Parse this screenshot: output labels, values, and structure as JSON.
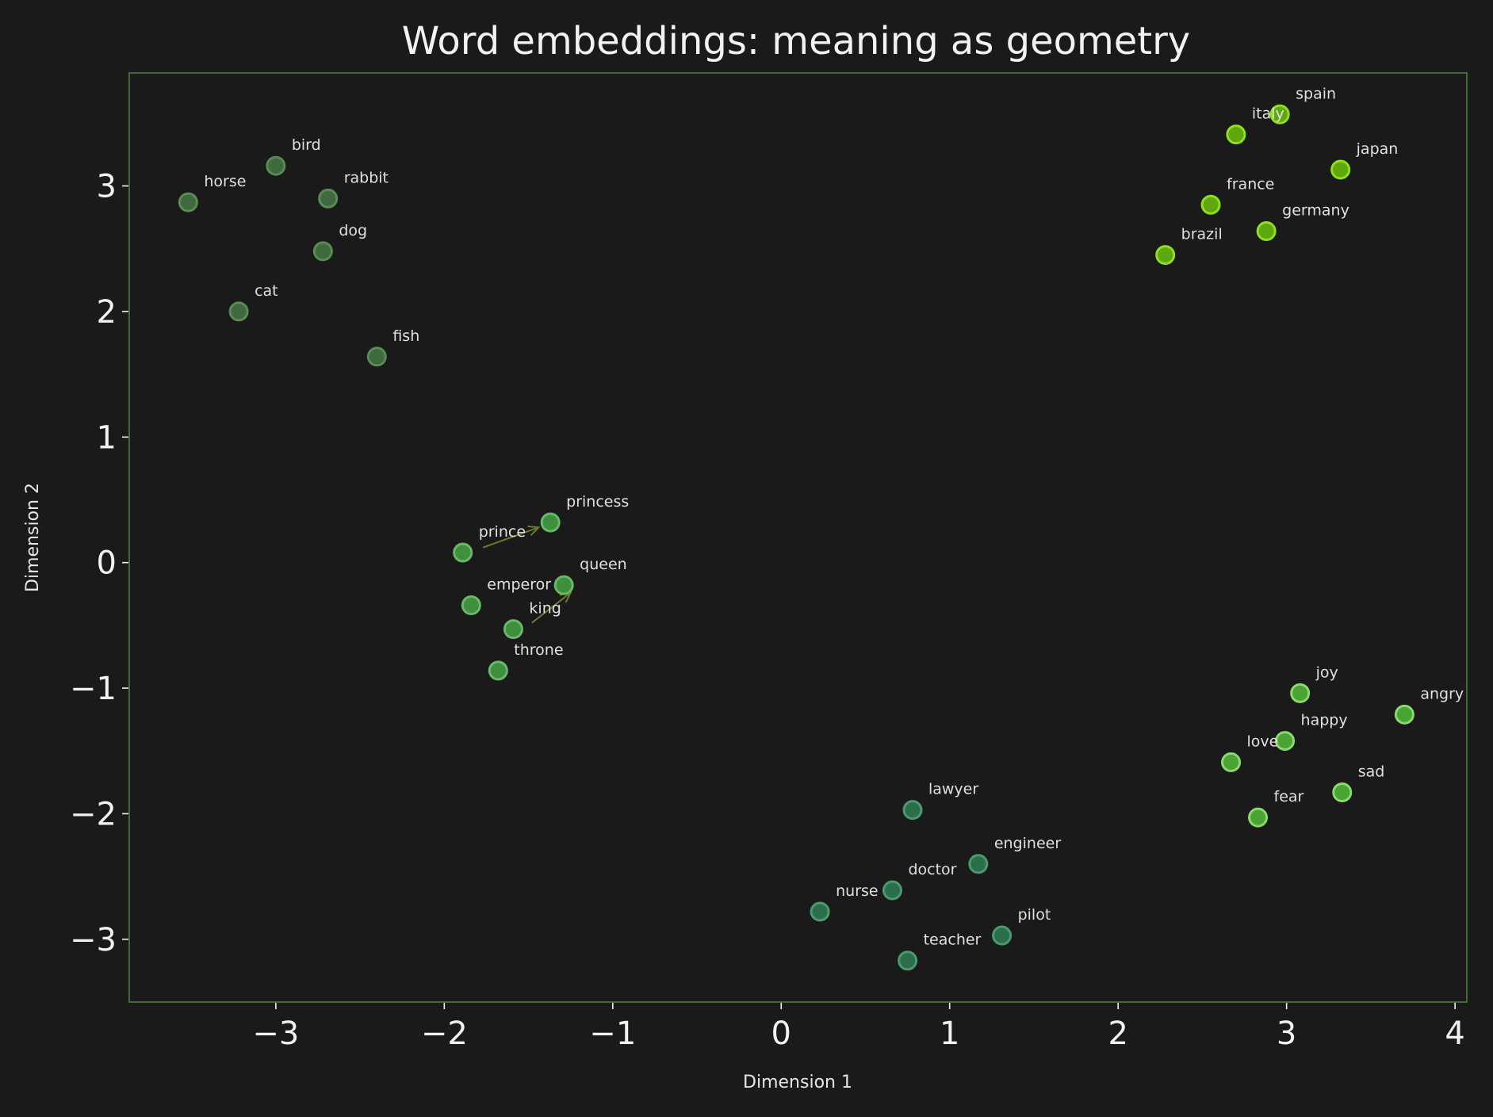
{
  "chart_data": {
    "type": "scatter",
    "title": "Word embeddings: meaning as geometry",
    "xlabel": "Dimension 1",
    "ylabel": "Dimension 2",
    "xlim": [
      -3.87,
      4.07
    ],
    "ylim": [
      -3.5,
      3.9
    ],
    "xticks": [
      -3,
      -2,
      -1,
      0,
      1,
      2,
      3,
      4
    ],
    "yticks": [
      -3,
      -2,
      -1,
      0,
      1,
      2,
      3
    ],
    "xtick_labels": [
      "−3",
      "−2",
      "−1",
      "0",
      "1",
      "2",
      "3",
      "4"
    ],
    "ytick_labels": [
      "−3",
      "−2",
      "−1",
      "0",
      "1",
      "2",
      "3"
    ],
    "grid": false,
    "colors": {
      "background": "#1a1a1a",
      "frame": "#3d6b30",
      "text": "#f2f2f2",
      "arrow": "#6b7a2a"
    },
    "series": [
      {
        "color": "#3f6a3d",
        "stroke": "#5a8a55",
        "points": [
          {
            "label": "horse",
            "x": -3.52,
            "y": 2.87
          },
          {
            "label": "bird",
            "x": -3.0,
            "y": 3.16
          },
          {
            "label": "rabbit",
            "x": -2.69,
            "y": 2.9
          },
          {
            "label": "dog",
            "x": -2.72,
            "y": 2.48
          },
          {
            "label": "cat",
            "x": -3.22,
            "y": 2.0
          },
          {
            "label": "fish",
            "x": -2.4,
            "y": 1.64
          }
        ]
      },
      {
        "color": "#3e8f3e",
        "stroke": "#68b868",
        "points": [
          {
            "label": "princess",
            "x": -1.37,
            "y": 0.32
          },
          {
            "label": "prince",
            "x": -1.89,
            "y": 0.08
          },
          {
            "label": "queen",
            "x": -1.29,
            "y": -0.18
          },
          {
            "label": "emperor",
            "x": -1.84,
            "y": -0.34
          },
          {
            "label": "king",
            "x": -1.59,
            "y": -0.53
          },
          {
            "label": "throne",
            "x": -1.68,
            "y": -0.86
          }
        ]
      },
      {
        "color": "#5ea80c",
        "stroke": "#8fdf1c",
        "points": [
          {
            "label": "spain",
            "x": 2.96,
            "y": 3.57
          },
          {
            "label": "italy",
            "x": 2.7,
            "y": 3.41
          },
          {
            "label": "japan",
            "x": 3.32,
            "y": 3.13
          },
          {
            "label": "france",
            "x": 2.55,
            "y": 2.85
          },
          {
            "label": "germany",
            "x": 2.88,
            "y": 2.64
          },
          {
            "label": "brazil",
            "x": 2.28,
            "y": 2.45
          }
        ]
      },
      {
        "color": "#4aa434",
        "stroke": "#8ad86e",
        "points": [
          {
            "label": "joy",
            "x": 3.08,
            "y": -1.04
          },
          {
            "label": "angry",
            "x": 3.7,
            "y": -1.21
          },
          {
            "label": "happy",
            "x": 2.99,
            "y": -1.42
          },
          {
            "label": "love",
            "x": 2.67,
            "y": -1.59
          },
          {
            "label": "sad",
            "x": 3.33,
            "y": -1.83
          },
          {
            "label": "fear",
            "x": 2.83,
            "y": -2.03
          }
        ]
      },
      {
        "color": "#2b6e4b",
        "stroke": "#4a9a6d",
        "points": [
          {
            "label": "lawyer",
            "x": 0.78,
            "y": -1.97
          },
          {
            "label": "engineer",
            "x": 1.17,
            "y": -2.4
          },
          {
            "label": "doctor",
            "x": 0.66,
            "y": -2.61
          },
          {
            "label": "nurse",
            "x": 0.23,
            "y": -2.78
          },
          {
            "label": "pilot",
            "x": 1.31,
            "y": -2.97
          },
          {
            "label": "teacher",
            "x": 0.75,
            "y": -3.17
          }
        ]
      }
    ],
    "arrows": [
      {
        "from": [
          -1.77,
          0.12
        ],
        "to": [
          -1.44,
          0.28
        ]
      },
      {
        "from": [
          -1.48,
          -0.48
        ],
        "to": [
          -1.25,
          -0.24
        ]
      }
    ]
  }
}
